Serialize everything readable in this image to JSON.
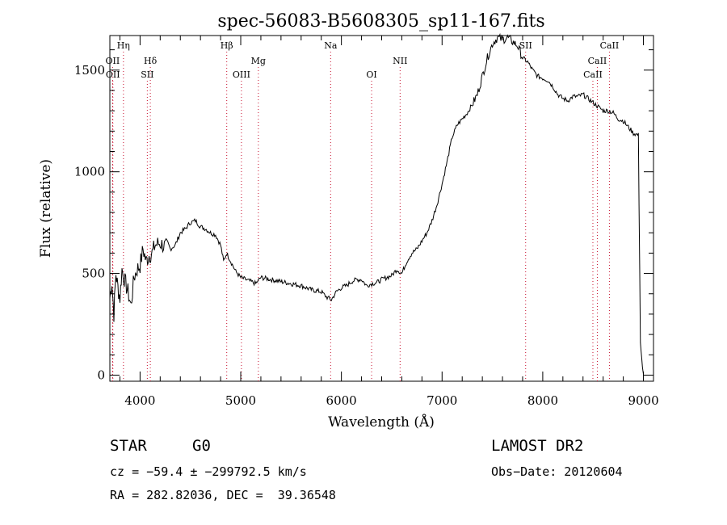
{
  "chart_data": {
    "type": "line",
    "title": "spec-56083-B5608305_sp11-167.fits",
    "xlabel": "Wavelength (Å)",
    "ylabel": "Flux (relative)",
    "xlim": [
      3700,
      9100
    ],
    "ylim": [
      -30,
      1670
    ],
    "x_ticks": [
      4000,
      5000,
      6000,
      7000,
      8000,
      9000
    ],
    "x_tick_labels": [
      "4000",
      "5000",
      "6000",
      "7000",
      "8000",
      "9000"
    ],
    "y_ticks": [
      0,
      500,
      1000,
      1500
    ],
    "y_tick_labels": [
      "0",
      "500",
      "1000",
      "1500"
    ],
    "grid": false,
    "series": [
      {
        "x": [
          3700,
          3720,
          3740,
          3760,
          3780,
          3800,
          3820,
          3850,
          3880,
          3910,
          3940,
          3970,
          4000,
          4030,
          4060,
          4090,
          4120,
          4150,
          4200,
          4250,
          4300,
          4350,
          4400,
          4450,
          4500,
          4550,
          4600,
          4650,
          4700,
          4750,
          4800,
          4830,
          4860,
          4900,
          4950,
          5000,
          5050,
          5100,
          5150,
          5200,
          5300,
          5400,
          5500,
          5600,
          5700,
          5800,
          5850,
          5900,
          5950,
          6000,
          6050,
          6100,
          6150,
          6200,
          6250,
          6300,
          6350,
          6400,
          6450,
          6500,
          6550,
          6600,
          6650,
          6700,
          6750,
          6800,
          6850,
          6900,
          6950,
          7000,
          7050,
          7100,
          7150,
          7200,
          7250,
          7300,
          7350,
          7400,
          7450,
          7500,
          7550,
          7600,
          7650,
          7700,
          7750,
          7800,
          7850,
          7900,
          7950,
          8000,
          8050,
          8100,
          8150,
          8200,
          8250,
          8300,
          8350,
          8400,
          8450,
          8500,
          8550,
          8600,
          8650,
          8700,
          8750,
          8800,
          8850,
          8900,
          8950,
          8970,
          8990,
          9000
        ],
        "y": [
          380,
          460,
          300,
          500,
          430,
          380,
          520,
          460,
          410,
          340,
          480,
          520,
          540,
          620,
          560,
          590,
          600,
          640,
          650,
          630,
          620,
          640,
          700,
          720,
          750,
          760,
          730,
          720,
          700,
          690,
          640,
          560,
          600,
          560,
          510,
          480,
          470,
          460,
          450,
          480,
          470,
          460,
          450,
          440,
          420,
          410,
          385,
          370,
          410,
          430,
          440,
          460,
          470,
          470,
          440,
          450,
          455,
          470,
          480,
          490,
          520,
          500,
          560,
          600,
          620,
          660,
          700,
          760,
          840,
          940,
          1050,
          1170,
          1230,
          1260,
          1290,
          1330,
          1380,
          1470,
          1560,
          1630,
          1660,
          1650,
          1660,
          1640,
          1620,
          1560,
          1540,
          1500,
          1470,
          1460,
          1450,
          1420,
          1380,
          1360,
          1350,
          1370,
          1370,
          1380,
          1360,
          1340,
          1320,
          1300,
          1300,
          1290,
          1260,
          1250,
          1220,
          1190,
          1180,
          160,
          40,
          5
        ]
      }
    ],
    "annotations": {
      "lines": [
        {
          "label": "Hη",
          "x": 3835,
          "row": 0
        },
        {
          "label": "OII",
          "x": 3727,
          "row": 1
        },
        {
          "label": "OII",
          "x": 3730,
          "row": 2
        },
        {
          "label": "Hδ",
          "x": 4102,
          "row": 1
        },
        {
          "label": "SII",
          "x": 4072,
          "row": 2
        },
        {
          "label": "Hβ",
          "x": 4861,
          "row": 0
        },
        {
          "label": "OIII",
          "x": 5007,
          "row": 2
        },
        {
          "label": "Mg",
          "x": 5175,
          "row": 1
        },
        {
          "label": "Na",
          "x": 5893,
          "row": 0
        },
        {
          "label": "OI",
          "x": 6300,
          "row": 2
        },
        {
          "label": "NII",
          "x": 6583,
          "row": 1
        },
        {
          "label": "SII",
          "x": 7830,
          "row": 0
        },
        {
          "label": "CaII",
          "x": 8662,
          "row": 0
        },
        {
          "label": "CaII",
          "x": 8542,
          "row": 1
        },
        {
          "label": "CaII",
          "x": 8498,
          "row": 2
        }
      ]
    }
  },
  "info": {
    "object_class": "STAR",
    "subclass": "G0",
    "survey": "LAMOST DR2",
    "cz": "cz = −59.4 ± −299792.5 km/s",
    "obs_date": "Obs−Date: 20120604",
    "coords": "RA = 282.82036, DEC =  39.36548"
  }
}
